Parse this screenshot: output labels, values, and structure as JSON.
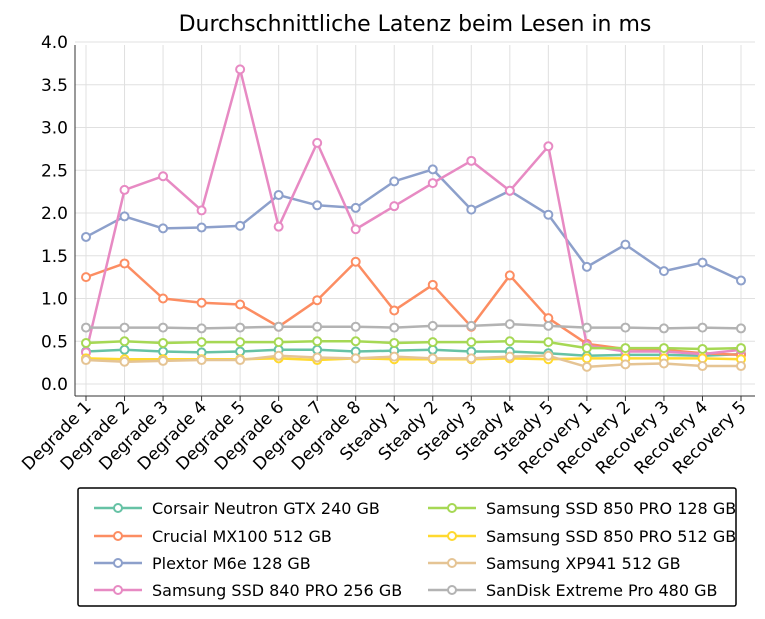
{
  "chart_data": {
    "type": "line",
    "title": "Durchschnittliche Latenz beim Lesen in ms",
    "xlabel": "",
    "ylabel": "",
    "ylim": [
      0.0,
      4.0
    ],
    "yticks": [
      "0.0",
      "0.5",
      "1.0",
      "1.5",
      "2.0",
      "2.5",
      "3.0",
      "3.5",
      "4.0"
    ],
    "grid": true,
    "legend_placement": "bottom",
    "categories": [
      "Degrade 1",
      "Degrade 2",
      "Degrade 3",
      "Degrade 4",
      "Degrade 5",
      "Degrade 6",
      "Degrade 7",
      "Degrade 8",
      "Steady 1",
      "Steady 2",
      "Steady 3",
      "Steady 4",
      "Steady 5",
      "Recovery 1",
      "Recovery 2",
      "Recovery 3",
      "Recovery 4",
      "Recovery 5"
    ],
    "series": [
      {
        "name": "Corsair Neutron GTX 240 GB",
        "color": "#66c2a5",
        "values": [
          0.38,
          0.4,
          0.38,
          0.37,
          0.38,
          0.4,
          0.4,
          0.38,
          0.39,
          0.4,
          0.38,
          0.38,
          0.36,
          0.33,
          0.34,
          0.34,
          0.33,
          0.35
        ]
      },
      {
        "name": "Crucial MX100 512 GB",
        "color": "#fc8d62",
        "values": [
          1.25,
          1.41,
          1.0,
          0.95,
          0.93,
          0.67,
          0.98,
          1.43,
          0.86,
          1.16,
          0.67,
          1.27,
          0.77,
          0.47,
          0.41,
          0.4,
          0.36,
          0.34
        ]
      },
      {
        "name": "Plextor M6e 128 GB",
        "color": "#8da0cb",
        "values": [
          1.72,
          1.96,
          1.82,
          1.83,
          1.85,
          2.21,
          2.09,
          2.06,
          2.37,
          2.51,
          2.04,
          2.26,
          1.98,
          1.37,
          1.63,
          1.32,
          1.42,
          1.21
        ]
      },
      {
        "name": "Samsung SSD 840 PRO 256 GB",
        "color": "#e78ac3",
        "values": [
          0.37,
          2.27,
          2.43,
          2.03,
          3.68,
          1.84,
          2.82,
          1.81,
          2.08,
          2.35,
          2.61,
          2.26,
          2.78,
          0.45,
          0.38,
          0.38,
          0.35,
          0.4
        ]
      },
      {
        "name": "Samsung SSD 850 PRO 128 GB",
        "color": "#a6d854",
        "values": [
          0.48,
          0.5,
          0.48,
          0.49,
          0.49,
          0.49,
          0.5,
          0.5,
          0.48,
          0.49,
          0.49,
          0.5,
          0.49,
          0.42,
          0.42,
          0.42,
          0.41,
          0.42
        ]
      },
      {
        "name": "Samsung SSD 850 PRO 512 GB",
        "color": "#ffd92f",
        "values": [
          0.3,
          0.29,
          0.29,
          0.29,
          0.29,
          0.3,
          0.28,
          0.3,
          0.29,
          0.29,
          0.29,
          0.3,
          0.29,
          0.3,
          0.3,
          0.3,
          0.3,
          0.29
        ]
      },
      {
        "name": "Samsung XP941 512 GB",
        "color": "#e5c494",
        "values": [
          0.28,
          0.26,
          0.27,
          0.28,
          0.28,
          0.33,
          0.31,
          0.3,
          0.32,
          0.3,
          0.3,
          0.32,
          0.33,
          0.2,
          0.23,
          0.24,
          0.21,
          0.21
        ]
      },
      {
        "name": "SanDisk Extreme Pro 480 GB",
        "color": "#b3b3b3",
        "values": [
          0.66,
          0.66,
          0.66,
          0.65,
          0.66,
          0.67,
          0.67,
          0.67,
          0.66,
          0.68,
          0.68,
          0.7,
          0.68,
          0.66,
          0.66,
          0.65,
          0.66,
          0.65
        ]
      }
    ]
  }
}
